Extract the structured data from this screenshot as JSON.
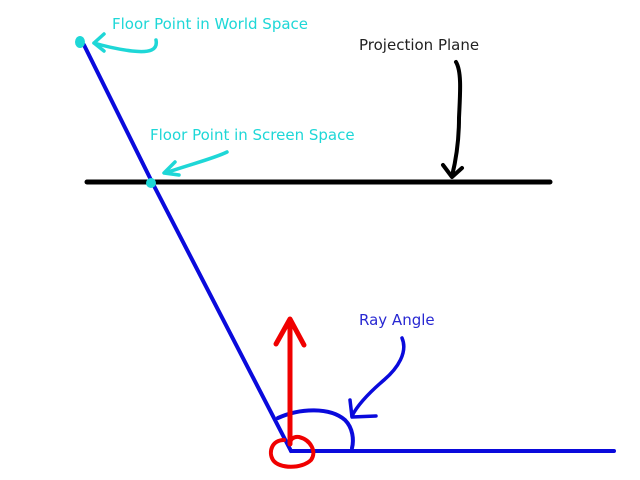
{
  "diagram": {
    "labels": {
      "floor_point_world": "Floor Point in World Space",
      "floor_point_screen": "Floor Point in Screen Space",
      "projection_plane": "Projection Plane",
      "ray_angle": "Ray Angle"
    },
    "colors": {
      "background": "#ffffff",
      "cyan": "#1ed7d7",
      "black": "#000000",
      "blue": "#0a0adc",
      "red": "#f00000",
      "label_dark": "#222222",
      "label_blue": "#2828d2"
    }
  }
}
